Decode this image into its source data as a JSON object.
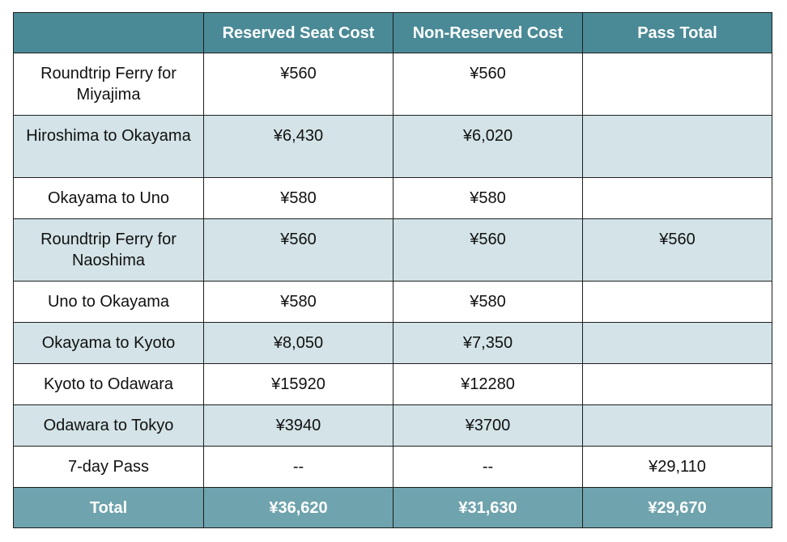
{
  "header": {
    "col0": "",
    "col1": "Reserved Seat Cost",
    "col2": "Non-Reserved Cost",
    "col3": "Pass Total"
  },
  "rows": [
    {
      "route": "Roundtrip Ferry for Miyajima",
      "reserved": "¥560",
      "non_reserved": "¥560",
      "pass_total": ""
    },
    {
      "route": "Hiroshima to Okayama",
      "reserved": "¥6,430",
      "non_reserved": "¥6,020",
      "pass_total": ""
    },
    {
      "route": "Okayama to Uno",
      "reserved": "¥580",
      "non_reserved": "¥580",
      "pass_total": ""
    },
    {
      "route": "Roundtrip Ferry for Naoshima",
      "reserved": "¥560",
      "non_reserved": "¥560",
      "pass_total": "¥560"
    },
    {
      "route": "Uno to Okayama",
      "reserved": "¥580",
      "non_reserved": "¥580",
      "pass_total": ""
    },
    {
      "route": "Okayama to Kyoto",
      "reserved": "¥8,050",
      "non_reserved": "¥7,350",
      "pass_total": ""
    },
    {
      "route": "Kyoto to Odawara",
      "reserved": "¥15920",
      "non_reserved": "¥12280",
      "pass_total": ""
    },
    {
      "route": "Odawara to Tokyo",
      "reserved": "¥3940",
      "non_reserved": "¥3700",
      "pass_total": ""
    },
    {
      "route": "7-day Pass",
      "reserved": "--",
      "non_reserved": "--",
      "pass_total": "¥29,110"
    }
  ],
  "total": {
    "label": "Total",
    "reserved": "¥36,620",
    "non_reserved": "¥31,630",
    "pass_total": "¥29,670"
  },
  "colors": {
    "header_bg": "#4a8a96",
    "row_alt_bg": "#d3e3e7",
    "total_bg": "#6fa3ad"
  }
}
